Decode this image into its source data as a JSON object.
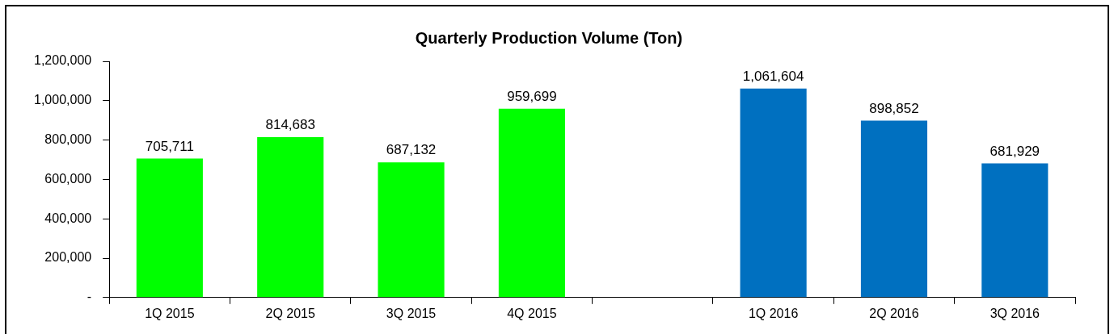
{
  "chart_data": {
    "type": "bar",
    "title": "Quarterly Production Volume (Ton)",
    "categories": [
      "1Q 2015",
      "2Q 2015",
      "3Q 2015",
      "4Q 2015",
      null,
      "1Q 2016",
      "2Q 2016",
      "3Q 2016"
    ],
    "values": [
      705711,
      814683,
      687132,
      959699,
      null,
      1061604,
      898852,
      681929
    ],
    "colors": [
      "#00ff00",
      "#00ff00",
      "#00ff00",
      "#00ff00",
      "#00ff00",
      "#0070c0",
      "#0070c0",
      "#0070c0"
    ],
    "ylim": [
      0,
      1200000
    ],
    "yticks": [
      {
        "value": 0,
        "label": "-"
      },
      {
        "value": 200000,
        "label": "200,000"
      },
      {
        "value": 400000,
        "label": "400,000"
      },
      {
        "value": 600000,
        "label": "600,000"
      },
      {
        "value": 800000,
        "label": "800,000"
      },
      {
        "value": 1000000,
        "label": "1,000,000"
      },
      {
        "value": 1200000,
        "label": "1,200,000"
      }
    ],
    "value_labels": [
      "705,711",
      "814,683",
      "687,132",
      "959,699",
      null,
      "1,061,604",
      "898,852",
      "681,929"
    ]
  }
}
